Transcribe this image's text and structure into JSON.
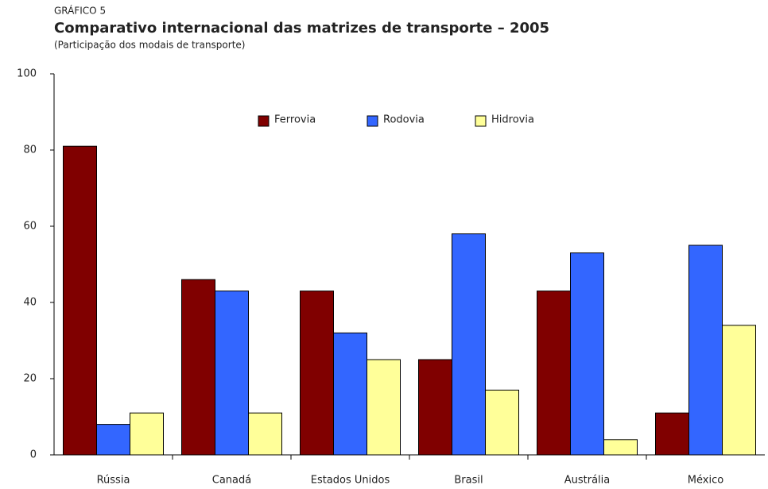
{
  "chart_data": {
    "type": "bar",
    "label": "GRÁFICO 5",
    "title": "Comparativo internacional das matrizes de transporte – 2005",
    "subtitle": "(Participação dos modais de transporte)",
    "categories": [
      "Rússia",
      "Canadá",
      "Estados Unidos",
      "Brasil",
      "Austrália",
      "México"
    ],
    "series": [
      {
        "name": "Ferrovia",
        "color": "#800000",
        "values": [
          81,
          46,
          43,
          25,
          43,
          11
        ]
      },
      {
        "name": "Rodovia",
        "color": "#3366ff",
        "values": [
          8,
          43,
          32,
          58,
          53,
          55
        ]
      },
      {
        "name": "Hidrovia",
        "color": "#ffff99",
        "values": [
          11,
          11,
          25,
          17,
          4,
          34
        ]
      }
    ],
    "ylim": [
      0,
      100
    ],
    "yticks": [
      0,
      20,
      40,
      60,
      80,
      100
    ],
    "legend": "top"
  }
}
